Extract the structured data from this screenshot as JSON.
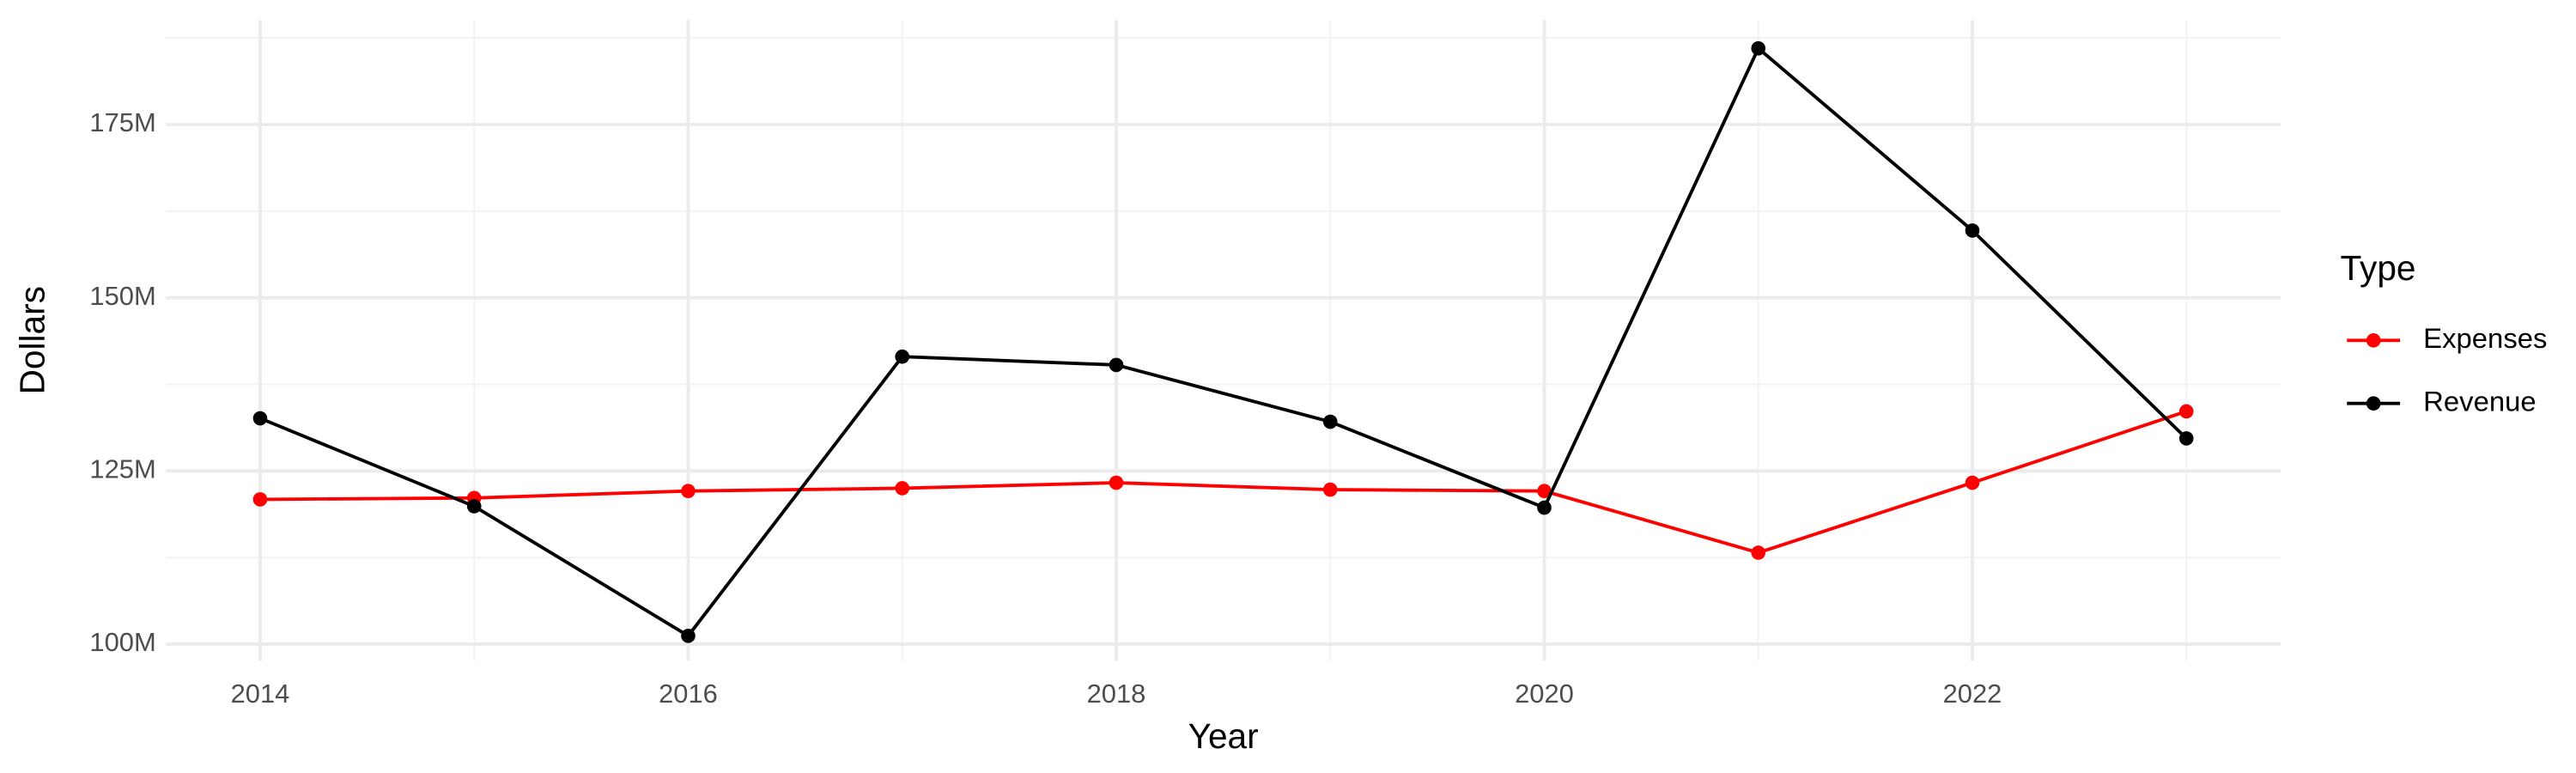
{
  "chart_data": {
    "type": "line",
    "x_label": "Year",
    "y_label": "Dollars",
    "legend_title": "Type",
    "legend_position": "right",
    "grid": true,
    "x": [
      2014,
      2015,
      2016,
      2017,
      2018,
      2019,
      2020,
      2021,
      2022,
      2023
    ],
    "xlim": [
      2013.56,
      2023.44
    ],
    "xticks": [
      2014,
      2016,
      2018,
      2020,
      2022
    ],
    "ylim": [
      97600000,
      190100000
    ],
    "yticks": [
      {
        "value": 100000000,
        "label": "100M"
      },
      {
        "value": 125000000,
        "label": "125M"
      },
      {
        "value": 150000000,
        "label": "150M"
      },
      {
        "value": 175000000,
        "label": "175M"
      }
    ],
    "series": [
      {
        "name": "Expenses",
        "color": "#ff0000",
        "values": [
          120900000,
          121100000,
          122100000,
          122500000,
          123300000,
          122300000,
          122100000,
          113200000,
          123300000,
          133600000
        ]
      },
      {
        "name": "Revenue",
        "color": "#000000",
        "values": [
          132600000,
          119900000,
          101200000,
          141500000,
          140300000,
          132100000,
          119700000,
          186000000,
          159700000,
          129700000
        ]
      }
    ]
  }
}
